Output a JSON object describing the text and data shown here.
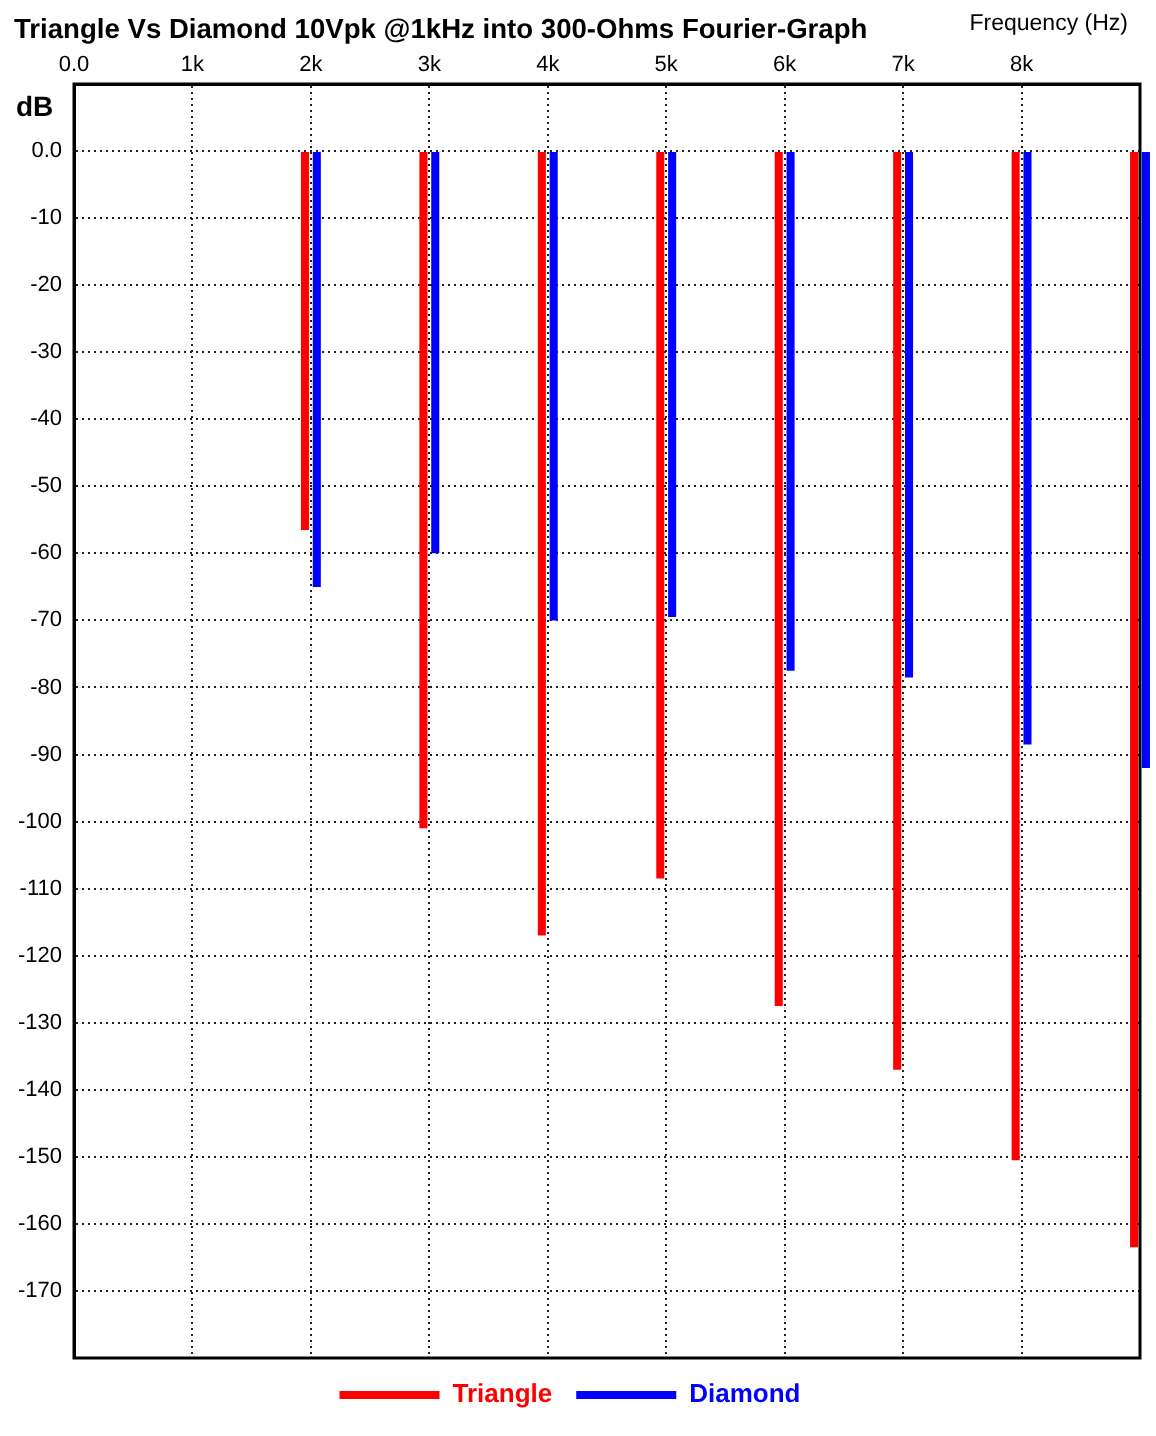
{
  "chart_data": {
    "type": "bar",
    "title": "Triangle Vs Diamond 10Vpk @1kHz into 300-Ohms Fourier-Graph",
    "xlabel": "Frequency (Hz)",
    "ylabel": "dB",
    "x": [
      2000,
      3000,
      4000,
      5000,
      6000,
      7000,
      8000,
      9000
    ],
    "series": [
      {
        "name": "Triangle",
        "color": "#ff0000",
        "values": [
          -56.5,
          -101,
          -117,
          -108.5,
          -127.5,
          -137,
          -150.5,
          -163.5
        ]
      },
      {
        "name": "Diamond",
        "color": "#0000ff",
        "values": [
          -65,
          -60,
          -70,
          -69.5,
          -77.5,
          -78.5,
          -88.5,
          -92
        ]
      }
    ],
    "xlim": [
      0,
      9000
    ],
    "xticks": [
      {
        "value": 0,
        "label": "0.0"
      },
      {
        "value": 1000,
        "label": "1k"
      },
      {
        "value": 2000,
        "label": "2k"
      },
      {
        "value": 3000,
        "label": "3k"
      },
      {
        "value": 4000,
        "label": "4k"
      },
      {
        "value": 5000,
        "label": "5k"
      },
      {
        "value": 6000,
        "label": "6k"
      },
      {
        "value": 7000,
        "label": "7k"
      },
      {
        "value": 8000,
        "label": "8k"
      }
    ],
    "ylim": [
      -180,
      10
    ],
    "yticks": [
      {
        "value": 0,
        "label": "0.0"
      },
      -10,
      -20,
      -30,
      -40,
      -50,
      -60,
      -70,
      -80,
      -90,
      -100,
      -110,
      -120,
      -130,
      -140,
      -150,
      -160,
      -170
    ],
    "grid": true,
    "legend": "bottom"
  }
}
